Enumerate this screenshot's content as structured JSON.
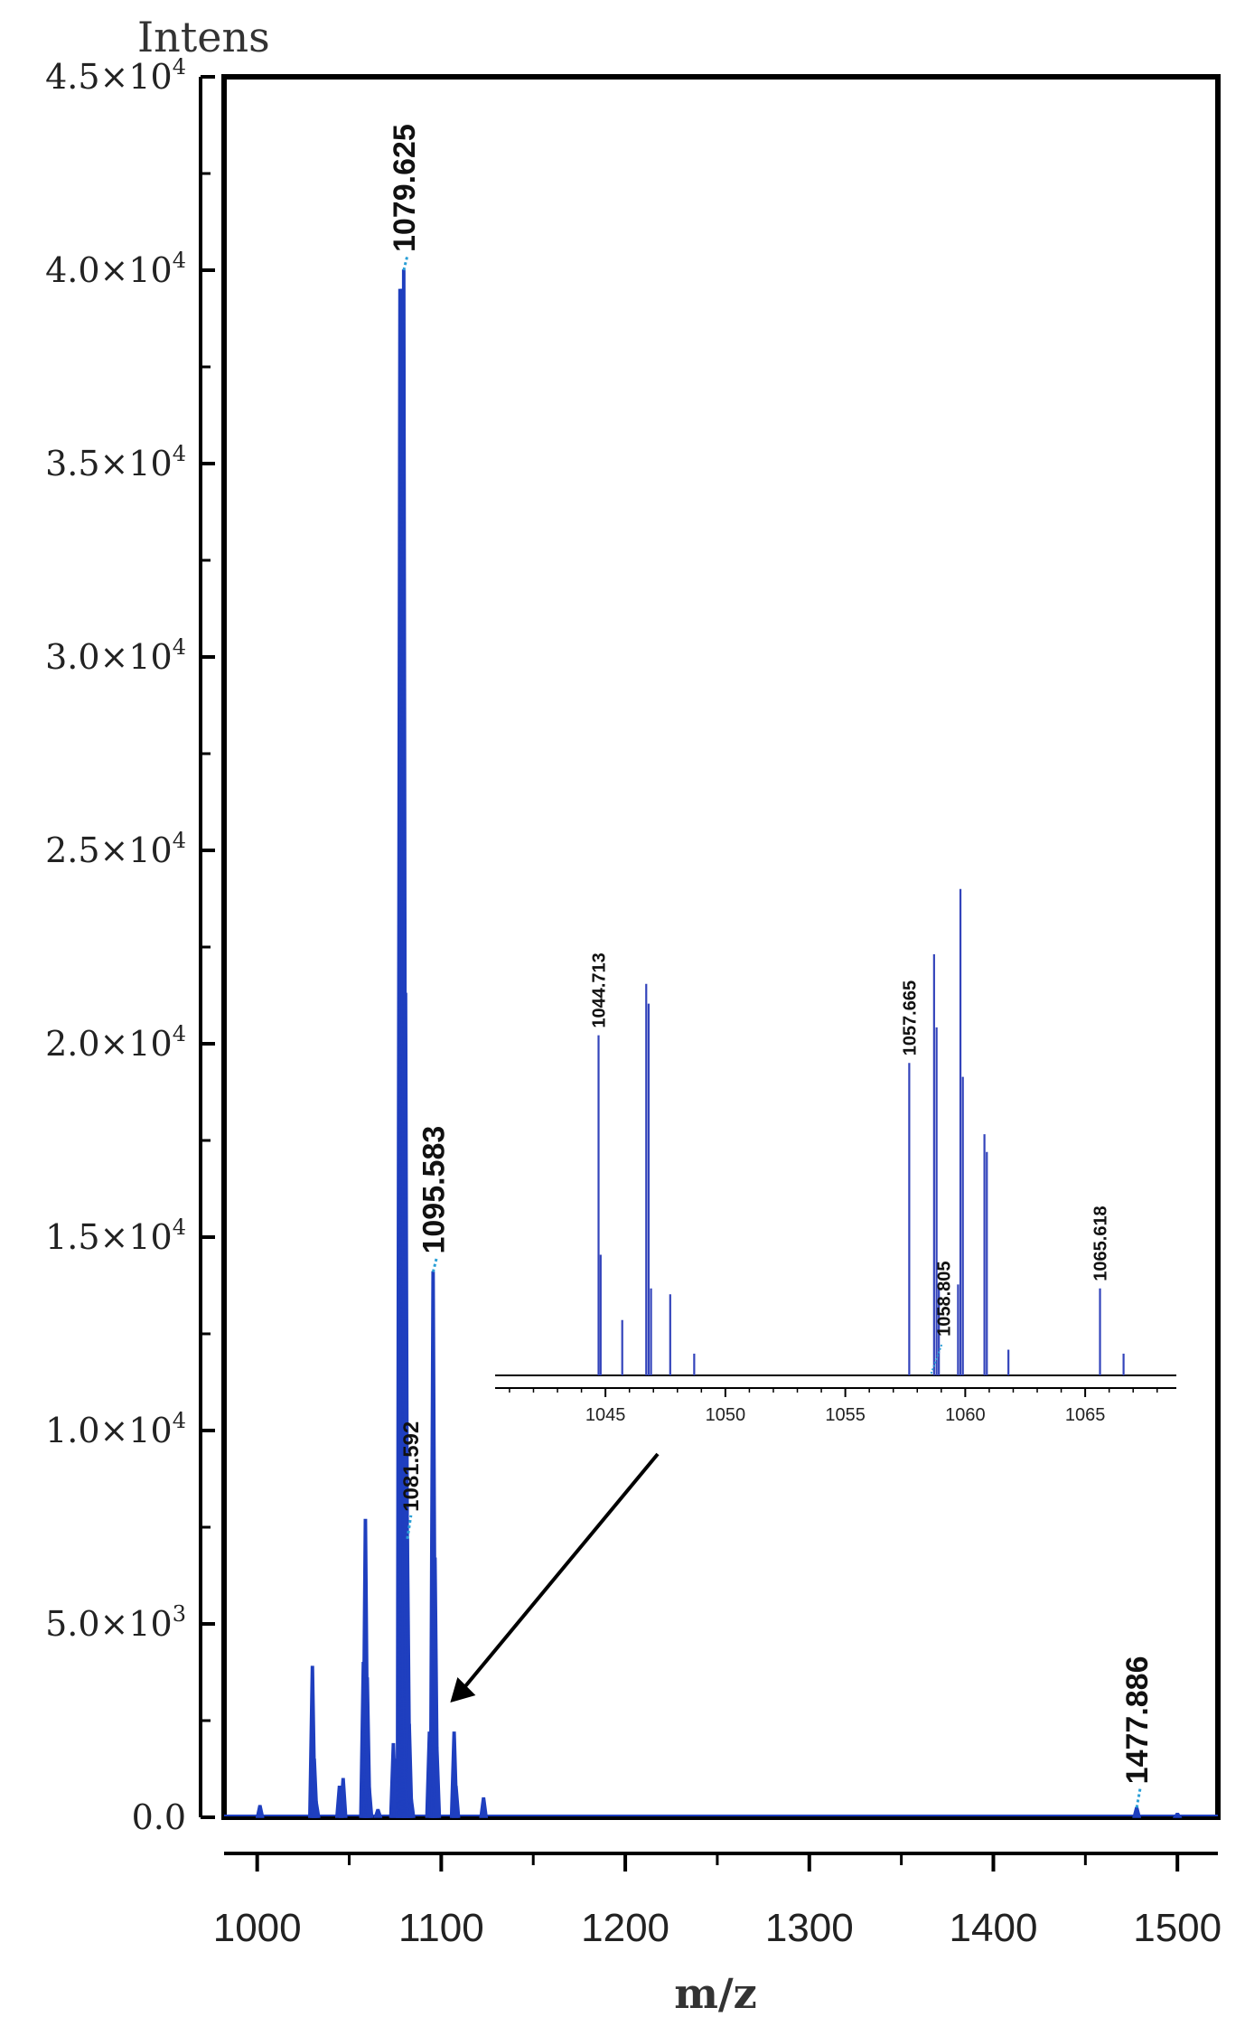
{
  "chart_data": [
    {
      "type": "line",
      "subtype": "mass-spectrum",
      "xlabel": "m/z",
      "ylabel": "Intens",
      "xlim": [
        982,
        1522
      ],
      "ylim": [
        0,
        45000
      ],
      "x_ticks": [
        1000,
        1100,
        1200,
        1300,
        1400,
        1500
      ],
      "x_tick_labels": [
        "1000",
        "1100",
        "1200",
        "1300",
        "1400",
        "1500"
      ],
      "y_ticks": [
        0,
        5000,
        10000,
        15000,
        20000,
        25000,
        30000,
        35000,
        40000,
        45000
      ],
      "y_tick_labels": [
        {
          "mantissa": "0.0",
          "exponent": ""
        },
        {
          "mantissa": "5.0×10",
          "exponent": "3"
        },
        {
          "mantissa": "1.0×10",
          "exponent": "4"
        },
        {
          "mantissa": "1.5×10",
          "exponent": "4"
        },
        {
          "mantissa": "2.0×10",
          "exponent": "4"
        },
        {
          "mantissa": "2.5×10",
          "exponent": "4"
        },
        {
          "mantissa": "3.0×10",
          "exponent": "4"
        },
        {
          "mantissa": "3.5×10",
          "exponent": "4"
        },
        {
          "mantissa": "4.0×10",
          "exponent": "4"
        },
        {
          "mantissa": "4.5×10",
          "exponent": "4"
        }
      ],
      "grid": false,
      "series": [
        {
          "color": "#1f3fbf",
          "points": [
            {
              "x": 1001.5,
              "y": 300
            },
            {
              "x": 1030.0,
              "y": 3900
            },
            {
              "x": 1031.0,
              "y": 1500
            },
            {
              "x": 1032.0,
              "y": 400
            },
            {
              "x": 1044.7,
              "y": 800
            },
            {
              "x": 1046.7,
              "y": 1000
            },
            {
              "x": 1057.7,
              "y": 4000
            },
            {
              "x": 1058.8,
              "y": 7700
            },
            {
              "x": 1059.8,
              "y": 3600
            },
            {
              "x": 1060.8,
              "y": 800
            },
            {
              "x": 1065.6,
              "y": 200
            },
            {
              "x": 1074.0,
              "y": 1900
            },
            {
              "x": 1075.0,
              "y": 1500
            },
            {
              "x": 1077.6,
              "y": 39500
            },
            {
              "x": 1078.6,
              "y": 39500
            },
            {
              "x": 1079.625,
              "y": 40000
            },
            {
              "x": 1080.6,
              "y": 21300
            },
            {
              "x": 1081.592,
              "y": 7200
            },
            {
              "x": 1082.6,
              "y": 2400
            },
            {
              "x": 1083.6,
              "y": 500
            },
            {
              "x": 1093.6,
              "y": 2200
            },
            {
              "x": 1095.583,
              "y": 14100
            },
            {
              "x": 1096.6,
              "y": 6700
            },
            {
              "x": 1097.6,
              "y": 1800
            },
            {
              "x": 1107.0,
              "y": 2200
            },
            {
              "x": 1108.0,
              "y": 800
            },
            {
              "x": 1123.0,
              "y": 500
            },
            {
              "x": 1477.886,
              "y": 250
            },
            {
              "x": 1500.0,
              "y": 100
            }
          ]
        }
      ],
      "annotations": [
        {
          "text": "1079.625",
          "x": 1079.625,
          "y": 40000
        },
        {
          "text": "1095.583",
          "x": 1095.583,
          "y": 14100
        },
        {
          "text": "1081.592",
          "x": 1081.592,
          "y": 7200
        },
        {
          "text": "1477.886",
          "x": 1477.886,
          "y": 250
        }
      ],
      "pointer_arrow_target": {
        "x": 1100,
        "y": 3200
      }
    },
    {
      "type": "line",
      "subtype": "mass-spectrum-inset",
      "xlabel": "",
      "ylabel": "",
      "xlim": [
        1040.4,
        1068.8
      ],
      "ylim": [
        0,
        25000
      ],
      "x_ticks": [
        1045,
        1050,
        1055,
        1060,
        1065
      ],
      "x_tick_labels": [
        "1045",
        "1050",
        "1055",
        "1060",
        "1065"
      ],
      "series": [
        {
          "color": "#3344bb",
          "points": [
            {
              "x": 1044.713,
              "y": 17200
            },
            {
              "x": 1044.8,
              "y": 6100
            },
            {
              "x": 1045.7,
              "y": 2800
            },
            {
              "x": 1046.7,
              "y": 19800
            },
            {
              "x": 1046.8,
              "y": 18800
            },
            {
              "x": 1046.9,
              "y": 4400
            },
            {
              "x": 1047.7,
              "y": 4100
            },
            {
              "x": 1048.7,
              "y": 1100
            },
            {
              "x": 1057.665,
              "y": 15800
            },
            {
              "x": 1058.7,
              "y": 21300
            },
            {
              "x": 1058.805,
              "y": 17600
            },
            {
              "x": 1058.9,
              "y": 4400
            },
            {
              "x": 1059.7,
              "y": 4600
            },
            {
              "x": 1059.8,
              "y": 24600
            },
            {
              "x": 1059.9,
              "y": 15100
            },
            {
              "x": 1060.8,
              "y": 12200
            },
            {
              "x": 1060.9,
              "y": 11300
            },
            {
              "x": 1061.8,
              "y": 1300
            },
            {
              "x": 1065.618,
              "y": 4400
            },
            {
              "x": 1066.6,
              "y": 1100
            }
          ]
        }
      ],
      "annotations": [
        {
          "text": "1044.713",
          "x": 1044.713,
          "y": 17200
        },
        {
          "text": "1057.665",
          "x": 1057.665,
          "y": 15800
        },
        {
          "text": "1058.805",
          "x": 1058.805,
          "y": 600
        },
        {
          "text": "1065.618",
          "x": 1065.618,
          "y": 4400
        }
      ]
    }
  ]
}
